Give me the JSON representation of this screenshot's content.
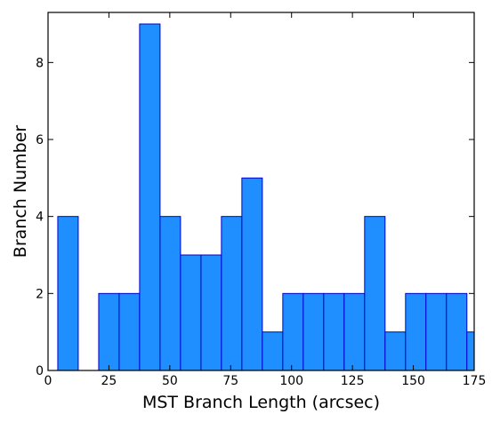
{
  "chart_data": {
    "type": "bar",
    "title": "",
    "xlabel": "MST Branch Length (arcsec)",
    "ylabel": "Branch Number",
    "xlim": [
      0,
      175
    ],
    "ylim": [
      0,
      9.3
    ],
    "xticks": [
      0,
      25,
      50,
      75,
      100,
      125,
      150,
      175
    ],
    "yticks": [
      0,
      2,
      4,
      6,
      8
    ],
    "grid": false,
    "bar_color": "#1f8fff",
    "edge_color": "#0000cc",
    "bins": [
      {
        "x0": 4.0,
        "x1": 12.4,
        "value": 4
      },
      {
        "x0": 12.4,
        "x1": 20.8,
        "value": 0
      },
      {
        "x0": 20.8,
        "x1": 29.2,
        "value": 2
      },
      {
        "x0": 29.2,
        "x1": 37.6,
        "value": 2
      },
      {
        "x0": 37.6,
        "x1": 46.0,
        "value": 9
      },
      {
        "x0": 46.0,
        "x1": 54.4,
        "value": 4
      },
      {
        "x0": 54.4,
        "x1": 62.8,
        "value": 3
      },
      {
        "x0": 62.8,
        "x1": 71.2,
        "value": 3
      },
      {
        "x0": 71.2,
        "x1": 79.6,
        "value": 4
      },
      {
        "x0": 79.6,
        "x1": 88.0,
        "value": 5
      },
      {
        "x0": 88.0,
        "x1": 96.4,
        "value": 1
      },
      {
        "x0": 96.4,
        "x1": 104.8,
        "value": 2
      },
      {
        "x0": 104.8,
        "x1": 113.2,
        "value": 2
      },
      {
        "x0": 113.2,
        "x1": 121.6,
        "value": 2
      },
      {
        "x0": 121.6,
        "x1": 130.0,
        "value": 2
      },
      {
        "x0": 130.0,
        "x1": 138.4,
        "value": 4
      },
      {
        "x0": 138.4,
        "x1": 146.8,
        "value": 1
      },
      {
        "x0": 146.8,
        "x1": 155.2,
        "value": 2
      },
      {
        "x0": 155.2,
        "x1": 163.6,
        "value": 2
      },
      {
        "x0": 163.6,
        "x1": 172.0,
        "value": 2
      },
      {
        "x0": 172.0,
        "x1": 180.4,
        "value": 1
      }
    ]
  }
}
